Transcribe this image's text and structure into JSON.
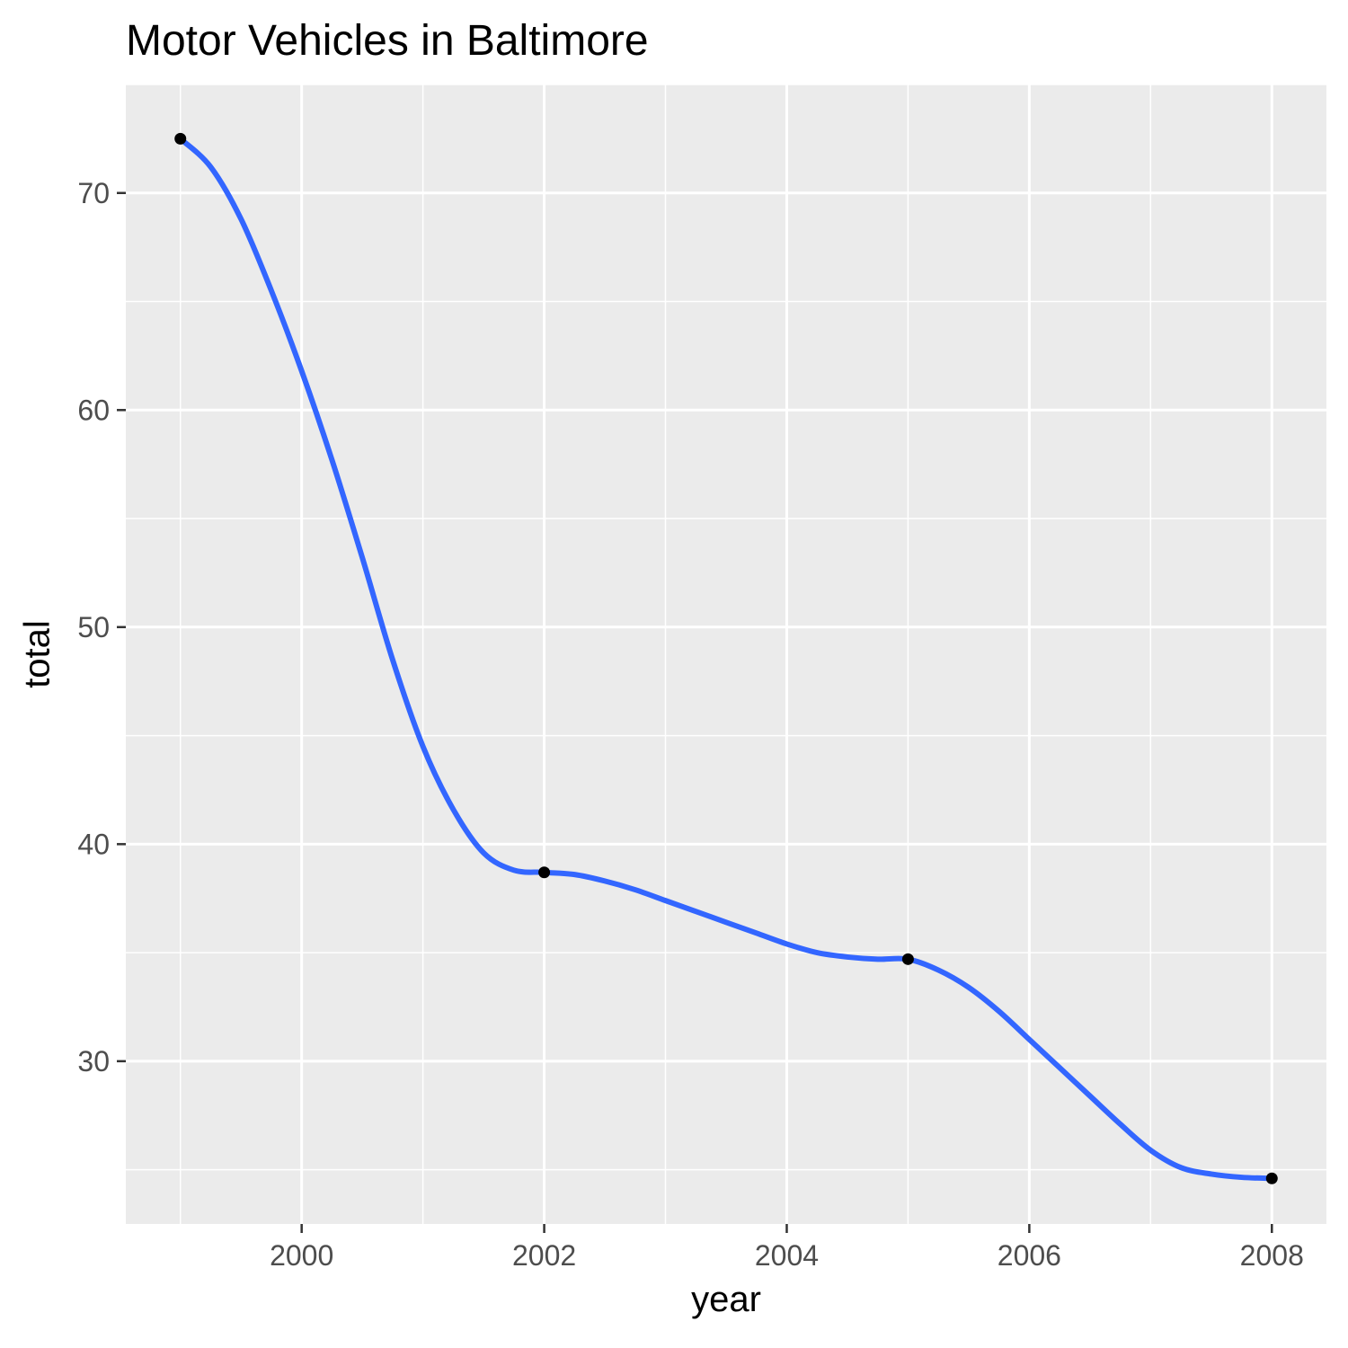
{
  "chart_data": {
    "type": "line",
    "title": "Motor Vehicles in Baltimore",
    "xlabel": "year",
    "ylabel": "total",
    "x_ticks": [
      2000,
      2002,
      2004,
      2006,
      2008
    ],
    "y_ticks": [
      30,
      40,
      50,
      60,
      70
    ],
    "xlim": [
      1998.55,
      2008.45
    ],
    "ylim": [
      22.5,
      75.0
    ],
    "grid": true,
    "legend": "none",
    "points": {
      "x": [
        1999,
        2002,
        2005,
        2008
      ],
      "y": [
        72.5,
        38.7,
        34.7,
        24.6
      ]
    },
    "smooth_line": {
      "x": [
        1999,
        1999.25,
        1999.5,
        1999.75,
        2000,
        2000.25,
        2000.5,
        2000.75,
        2001,
        2001.25,
        2001.5,
        2001.75,
        2002,
        2002.25,
        2002.5,
        2002.75,
        2003,
        2003.25,
        2003.5,
        2003.75,
        2004,
        2004.25,
        2004.5,
        2004.75,
        2005,
        2005.25,
        2005.5,
        2005.75,
        2006,
        2006.25,
        2006.5,
        2006.75,
        2007,
        2007.25,
        2007.5,
        2007.75,
        2008
      ],
      "y": [
        72.5,
        71.2,
        68.8,
        65.5,
        61.8,
        57.7,
        53.2,
        48.5,
        44.5,
        41.6,
        39.6,
        38.8,
        38.7,
        38.6,
        38.3,
        37.9,
        37.4,
        36.9,
        36.4,
        35.9,
        35.4,
        35.0,
        34.8,
        34.7,
        34.7,
        34.2,
        33.4,
        32.3,
        31.0,
        29.7,
        28.4,
        27.1,
        25.9,
        25.1,
        24.8,
        24.65,
        24.6
      ]
    },
    "colors": {
      "panel": "#EBEBEB",
      "grid_major": "#FFFFFF",
      "line": "#3366FF",
      "point": "#000000",
      "tick_label": "#4D4D4D"
    }
  }
}
